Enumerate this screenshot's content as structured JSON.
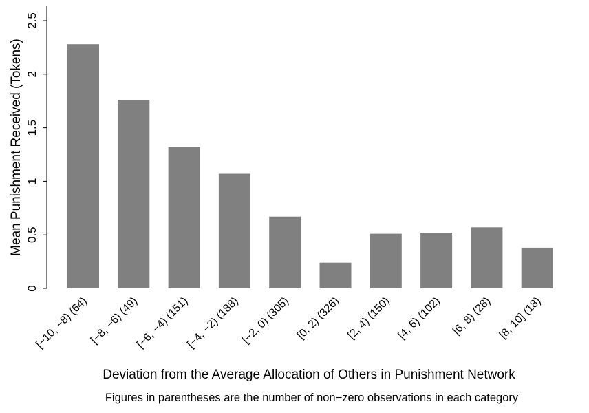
{
  "chart_data": {
    "type": "bar",
    "categories": [
      "[−10, −8) (64)",
      "[−8, −6) (49)",
      "[−6, −4) (151)",
      "[−4, −2) (188)",
      "[−2, 0) (305)",
      "[0, 2) (326)",
      "[2, 4) (150)",
      "[4, 6) (102)",
      "[6, 8) (28)",
      "[8, 10] (18)"
    ],
    "values": [
      2.28,
      1.76,
      1.32,
      1.07,
      0.67,
      0.24,
      0.51,
      0.52,
      0.57,
      0.38
    ],
    "ylabel": "Mean Punishment Received (Tokens)",
    "xlabel": "Deviation from the Average Allocation of Others in Punishment Network",
    "note": "Figures in parentheses are the number of non−zero observations in each category",
    "ylim": [
      0,
      2.5
    ],
    "yticks": [
      0,
      0.5,
      1,
      1.5,
      2,
      2.5
    ],
    "ytick_labels": [
      "0",
      "0.5",
      "1",
      "1.5",
      "2",
      "2.5"
    ],
    "bar_color": "#808080",
    "grid": false
  }
}
